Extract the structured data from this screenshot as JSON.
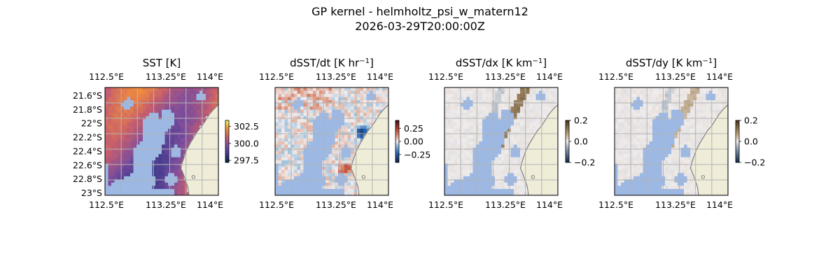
{
  "figure": {
    "title_line1": "GP kernel - helmholtz_psi_w_matern12",
    "title_line2": "2026-03-29T20:00:00Z"
  },
  "colors": {
    "land": "#efecd8",
    "coast": "#808080",
    "mask": "#9cb8e3",
    "grid": "#b3b3b3"
  },
  "chart_data": [
    {
      "type": "heatmap",
      "id": "sst",
      "title": "SST [K]",
      "colormap": "thermal",
      "x_ticks": [
        "112.5°E",
        "113.25°E",
        "114°E"
      ],
      "x_tick_values": [
        112.5,
        113.25,
        114.0
      ],
      "y_ticks": [
        "21.6°S",
        "21.8°S",
        "22°S",
        "22.2°S",
        "22.4°S",
        "22.6°S",
        "22.8°S",
        "23°S"
      ],
      "y_tick_values": [
        -21.6,
        -21.8,
        -22.0,
        -22.2,
        -22.4,
        -22.6,
        -22.8,
        -23.0
      ],
      "xlim": [
        112.5,
        114.05
      ],
      "ylim": [
        -23.0,
        -21.48
      ],
      "colorbar": {
        "ticks": [
          "302.5",
          "300.0",
          "297.5"
        ],
        "tick_values": [
          302.5,
          300.0,
          297.5
        ],
        "vmin": 297.2,
        "vmax": 303.4
      },
      "value_range": [
        298.5,
        301.5
      ],
      "grid": true
    },
    {
      "type": "heatmap",
      "id": "dsst_dt",
      "title_main": "dSST/dt [K hr",
      "title_sup": "−1",
      "title_end": "]",
      "colormap": "balance",
      "x_ticks": [
        "112.5°E",
        "113.25°E",
        "114°E"
      ],
      "x_tick_values": [
        112.5,
        113.25,
        114.0
      ],
      "colorbar": {
        "ticks": [
          "0.25",
          "0.00",
          "−0.25"
        ],
        "tick_values": [
          0.25,
          0.0,
          -0.25
        ],
        "vmin": -0.4,
        "vmax": 0.4
      },
      "grid": true
    },
    {
      "type": "heatmap",
      "id": "dsst_dx",
      "title_main": "dSST/dx [K km",
      "title_sup": "−1",
      "title_end": "]",
      "colormap": "diverging-brown",
      "x_ticks": [
        "112.5°E",
        "113.25°E",
        "114°E"
      ],
      "x_tick_values": [
        112.5,
        113.25,
        114.0
      ],
      "colorbar": {
        "ticks": [
          "0.2",
          "0.0",
          "−0.2"
        ],
        "tick_values": [
          0.2,
          0.0,
          -0.2
        ],
        "vmin": -0.2,
        "vmax": 0.2
      },
      "grid": true
    },
    {
      "type": "heatmap",
      "id": "dsst_dy",
      "title_main": "dSST/dy [K km",
      "title_sup": "−1",
      "title_end": "]",
      "colormap": "diverging-brown",
      "x_ticks": [
        "112.5°E",
        "113.25°E",
        "114°E"
      ],
      "x_tick_values": [
        112.5,
        113.25,
        114.0
      ],
      "colorbar": {
        "ticks": [
          "0.2",
          "0.0",
          "−0.2"
        ],
        "tick_values": [
          0.2,
          0.0,
          -0.2
        ],
        "vmin": -0.2,
        "vmax": 0.2
      },
      "grid": true
    }
  ]
}
